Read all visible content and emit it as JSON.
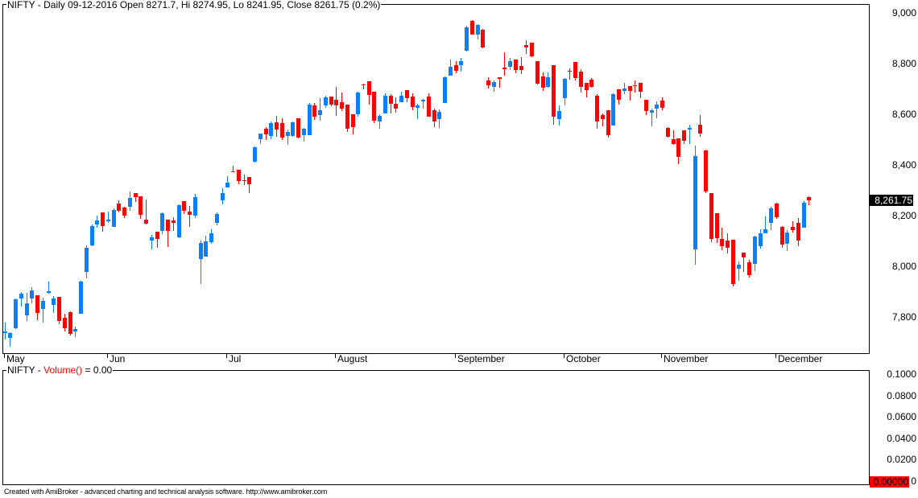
{
  "price_pane": {
    "title": "NIFTY - Daily 09-12-2016 Open 8271.7, Hi 8274.95, Lo 8241.95, Close 8261.75 (0.2%)",
    "last_price_label": "8,261.75",
    "y_axis_labels": [
      "9,000",
      "8,800",
      "8,600",
      "8,400",
      "8,200",
      "8,000",
      "7,800"
    ]
  },
  "volume_pane": {
    "title_prefix": "NIFTY - ",
    "title_indicator": "Volume()",
    "title_value": " = 0.00",
    "y_axis_labels": [
      "0.1000",
      "0.0800",
      "0.0600",
      "0.0400",
      "0.0200",
      "0"
    ],
    "last_value_label": "0.00000"
  },
  "x_axis": {
    "labels": [
      "May",
      "Jun",
      "Jul",
      "August",
      "September",
      "October",
      "November",
      "December"
    ]
  },
  "footer": {
    "text": "Created with AmiBroker - advanced charting and technical analysis software. http://www.amibroker.com"
  },
  "colors": {
    "up": "#0A80FF",
    "down": "#FF0000",
    "indicator_title": "#FF0000",
    "last_price_bg": "#000000",
    "last_volume_bg": "#FF0000"
  },
  "chart_data": [
    {
      "type": "candlestick",
      "title": "NIFTY - Daily 09-12-2016 Open 8271.7, Hi 8274.95, Lo 8241.95, Close 8261.75 (0.2%)",
      "xlabel": "",
      "ylabel": "",
      "ylim": [
        7657,
        9035
      ],
      "yticks": [
        9000,
        8800,
        8600,
        8400,
        8200,
        8000,
        7800
      ],
      "grid": false,
      "legend": "none",
      "x_ticks": [
        {
          "label": "May",
          "bar": 0
        },
        {
          "label": "Jun",
          "bar": 19
        },
        {
          "label": "Jul",
          "bar": 41
        },
        {
          "label": "August",
          "bar": 61
        },
        {
          "label": "September",
          "bar": 83
        },
        {
          "label": "October",
          "bar": 103
        },
        {
          "label": "November",
          "bar": 121
        },
        {
          "label": "December",
          "bar": 142
        }
      ],
      "last_value": 8261.75,
      "last_bar": {
        "date": "09-12-2016",
        "open": 8271.7,
        "high": 8274.95,
        "low": 8241.95,
        "close": 8261.75,
        "change_pct": 0.2
      },
      "series": [
        {
          "name": "NIFTY",
          "fields": [
            "open",
            "high",
            "low",
            "close"
          ],
          "ohlc": [
            [
              7737,
              7778,
              7711,
              7743
            ],
            [
              7717,
              7740,
              7682,
              7737
            ],
            [
              7756,
              7873,
              7753,
              7870
            ],
            [
              7873,
              7898,
              7841,
              7892
            ],
            [
              7806,
              7895,
              7784,
              7854
            ],
            [
              7873,
              7917,
              7854,
              7905
            ],
            [
              7886,
              7887,
              7787,
              7816
            ],
            [
              7832,
              7876,
              7778,
              7863
            ],
            [
              7896,
              7940,
              7892,
              7900
            ],
            [
              7848,
              7882,
              7816,
              7873
            ],
            [
              7879,
              7880,
              7771,
              7784
            ],
            [
              7797,
              7813,
              7743,
              7756
            ],
            [
              7819,
              7822,
              7727,
              7733
            ],
            [
              7743,
              7762,
              7721,
              7752
            ],
            [
              7813,
              7943,
              7812,
              7940
            ],
            [
              7978,
              8083,
              7952,
              8073
            ],
            [
              8083,
              8165,
              8079,
              8159
            ],
            [
              8165,
              8200,
              8152,
              8181
            ],
            [
              8213,
              8214,
              8136,
              8159
            ],
            [
              8178,
              8216,
              8171,
              8184
            ],
            [
              8156,
              8229,
              8155,
              8222
            ],
            [
              8248,
              8260,
              8213,
              8219
            ],
            [
              8232,
              8235,
              8190,
              8200
            ],
            [
              8235,
              8295,
              8219,
              8270
            ],
            [
              8289,
              8290,
              8254,
              8273
            ],
            [
              8276,
              8277,
              8187,
              8203
            ],
            [
              8184,
              8264,
              8165,
              8168
            ],
            [
              8102,
              8124,
              8067,
              8114
            ],
            [
              8136,
              8137,
              8073,
              8108
            ],
            [
              8140,
              8213,
              8127,
              8210
            ],
            [
              8184,
              8185,
              8076,
              8140
            ],
            [
              8181,
              8194,
              8140,
              8171
            ],
            [
              8114,
              8244,
              8111,
              8241
            ],
            [
              8257,
              8258,
              8206,
              8219
            ],
            [
              8216,
              8238,
              8156,
              8203
            ],
            [
              8200,
              8286,
              8190,
              8273
            ],
            [
              8029,
              8102,
              7930,
              8092
            ],
            [
              8038,
              8121,
              8037,
              8098
            ],
            [
              8095,
              8146,
              8089,
              8130
            ],
            [
              8171,
              8213,
              8162,
              8206
            ],
            [
              8260,
              8308,
              8244,
              8289
            ],
            [
              8311,
              8356,
              8310,
              8330
            ],
            [
              8373,
              8397,
              8370,
              8370
            ],
            [
              8381,
              8382,
              8324,
              8337
            ],
            [
              8341,
              8362,
              8321,
              8338
            ],
            [
              8352,
              8353,
              8289,
              8324
            ],
            [
              8413,
              8473,
              8410,
              8470
            ],
            [
              8502,
              8525,
              8483,
              8524
            ],
            [
              8543,
              8549,
              8498,
              8521
            ],
            [
              8514,
              8571,
              8502,
              8565
            ],
            [
              8568,
              8594,
              8511,
              8540
            ],
            [
              8565,
              8584,
              8498,
              8508
            ],
            [
              8514,
              8540,
              8479,
              8530
            ],
            [
              8514,
              8570,
              8512,
              8568
            ],
            [
              8584,
              8585,
              8505,
              8508
            ],
            [
              8517,
              8546,
              8492,
              8543
            ],
            [
              8517,
              8644,
              8516,
              8638
            ],
            [
              8635,
              8644,
              8578,
              8590
            ],
            [
              8597,
              8664,
              8575,
              8616
            ],
            [
              8635,
              8673,
              8625,
              8667
            ],
            [
              8670,
              8671,
              8632,
              8638
            ],
            [
              8657,
              8708,
              8594,
              8635
            ],
            [
              8648,
              8686,
              8613,
              8622
            ],
            [
              8638,
              8639,
              8530,
              8543
            ],
            [
              8600,
              8601,
              8521,
              8549
            ],
            [
              8600,
              8689,
              8590,
              8686
            ],
            [
              8716,
              8721,
              8698,
              8713
            ],
            [
              8730,
              8731,
              8638,
              8676
            ],
            [
              8689,
              8690,
              8565,
              8575
            ],
            [
              8571,
              8600,
              8543,
              8594
            ],
            [
              8603,
              8683,
              8602,
              8673
            ],
            [
              8673,
              8679,
              8603,
              8641
            ],
            [
              8641,
              8667,
              8606,
              8622
            ],
            [
              8648,
              8689,
              8647,
              8673
            ],
            [
              8695,
              8696,
              8648,
              8664
            ],
            [
              8670,
              8683,
              8616,
              8629
            ],
            [
              8625,
              8641,
              8581,
              8635
            ],
            [
              8652,
              8660,
              8622,
              8656
            ],
            [
              8670,
              8683,
              8589,
              8590
            ],
            [
              8616,
              8622,
              8549,
              8571
            ],
            [
              8581,
              8619,
              8546,
              8610
            ],
            [
              8644,
              8749,
              8643,
              8746
            ],
            [
              8752,
              8816,
              8751,
              8787
            ],
            [
              8794,
              8810,
              8762,
              8771
            ],
            [
              8794,
              8822,
              8768,
              8810
            ],
            [
              8851,
              8949,
              8848,
              8943
            ],
            [
              8968,
              8970,
              8913,
              8914
            ],
            [
              8914,
              8955,
              8895,
              8952
            ],
            [
              8933,
              8936,
              8860,
              8863
            ],
            [
              8733,
              8746,
              8702,
              8714
            ],
            [
              8708,
              8733,
              8689,
              8727
            ],
            [
              8746,
              8747,
              8705,
              8740
            ],
            [
              8783,
              8844,
              8752,
              8779
            ],
            [
              8787,
              8822,
              8775,
              8810
            ],
            [
              8816,
              8817,
              8762,
              8775
            ],
            [
              8790,
              8825,
              8759,
              8775
            ],
            [
              8873,
              8892,
              8838,
              8863
            ],
            [
              8882,
              8883,
              8826,
              8829
            ],
            [
              8810,
              8811,
              8718,
              8721
            ],
            [
              8749,
              8765,
              8692,
              8705
            ],
            [
              8708,
              8765,
              8705,
              8746
            ],
            [
              8794,
              8795,
              8559,
              8590
            ],
            [
              8581,
              8635,
              8556,
              8613
            ],
            [
              8664,
              8743,
              8635,
              8740
            ],
            [
              8773,
              8781,
              8736,
              8770
            ],
            [
              8806,
              8807,
              8733,
              8743
            ],
            [
              8768,
              8778,
              8686,
              8708
            ],
            [
              8724,
              8725,
              8667,
              8695
            ],
            [
              8736,
              8743,
              8705,
              8708
            ],
            [
              8673,
              8679,
              8543,
              8571
            ],
            [
              8597,
              8603,
              8552,
              8581
            ],
            [
              8616,
              8617,
              8508,
              8517
            ],
            [
              8556,
              8683,
              8555,
              8679
            ],
            [
              8698,
              8699,
              8638,
              8657
            ],
            [
              8692,
              8724,
              8679,
              8702
            ],
            [
              8711,
              8712,
              8654,
              8692
            ],
            [
              8713,
              8733,
              8686,
              8710
            ],
            [
              8724,
              8725,
              8664,
              8689
            ],
            [
              8657,
              8658,
              8597,
              8613
            ],
            [
              8606,
              8622,
              8552,
              8616
            ],
            [
              8622,
              8651,
              8584,
              8638
            ],
            [
              8654,
              8667,
              8616,
              8625
            ],
            [
              8546,
              8549,
              8508,
              8511
            ],
            [
              8502,
              8537,
              8479,
              8483
            ],
            [
              8505,
              8506,
              8403,
              8432
            ],
            [
              8537,
              8538,
              8483,
              8495
            ],
            [
              8540,
              8559,
              8483,
              8546
            ],
            [
              8067,
              8476,
              8006,
              8435
            ],
            [
              8559,
              8597,
              8511,
              8524
            ],
            [
              8457,
              8460,
              8289,
              8295
            ],
            [
              8289,
              8290,
              8095,
              8108
            ],
            [
              8210,
              8211,
              8092,
              8111
            ],
            [
              8108,
              8152,
              8064,
              8079
            ],
            [
              8102,
              8130,
              8051,
              8073
            ],
            [
              8105,
              8106,
              7921,
              7930
            ],
            [
              7990,
              8019,
              7943,
              8006
            ],
            [
              8054,
              8055,
              7978,
              8035
            ],
            [
              8016,
              8025,
              7956,
              7965
            ],
            [
              8010,
              8121,
              7981,
              8117
            ],
            [
              8079,
              8146,
              8070,
              8130
            ],
            [
              8130,
              8197,
              8129,
              8146
            ],
            [
              8171,
              8235,
              8143,
              8229
            ],
            [
              8248,
              8251,
              8187,
              8194
            ],
            [
              8156,
              8159,
              8073,
              8086
            ],
            [
              8089,
              8143,
              8060,
              8133
            ],
            [
              8156,
              8178,
              8133,
              8143
            ],
            [
              8171,
              8190,
              8079,
              8102
            ],
            [
              8152,
              8257,
              8151,
              8251
            ],
            [
              8271.7,
              8274.95,
              8241.95,
              8261.75
            ]
          ]
        }
      ]
    },
    {
      "type": "bar",
      "title": "NIFTY - Volume() = 0.00",
      "xlabel": "",
      "ylabel": "",
      "ylim": [
        0,
        0.1
      ],
      "yticks": [
        0.1,
        0.08,
        0.06,
        0.04,
        0.02,
        0
      ],
      "grid": false,
      "series": [
        {
          "name": "Volume()",
          "constant_value": 0
        }
      ],
      "last_value": 0
    }
  ]
}
